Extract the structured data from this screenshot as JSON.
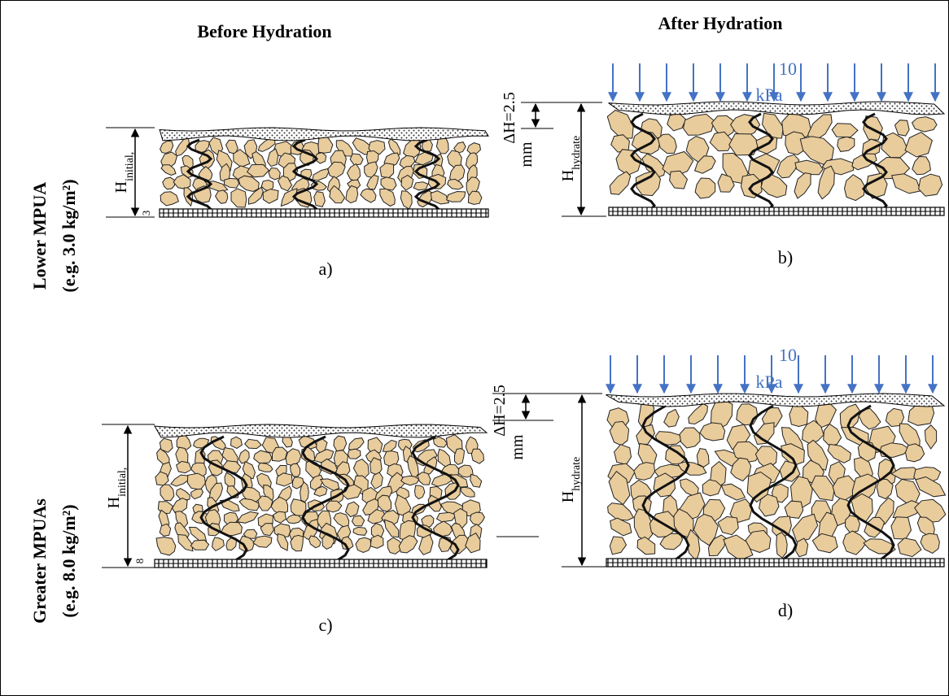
{
  "headers": {
    "before": "Before Hydration",
    "after": "After Hydration"
  },
  "rows": [
    {
      "label": "Lower MPUA",
      "note": "(e.g. 3.0 kg/m²)"
    },
    {
      "label": "Greater MPUAs",
      "note": "(e.g. 8.0 kg/m²)"
    }
  ],
  "panels": [
    {
      "label": "a)",
      "height_symbol": "H",
      "height_subscript": "initial,",
      "marker": "3"
    },
    {
      "label": "b)",
      "delta": "ΔH=2.5",
      "delta_unit": "mm",
      "height_symbol": "H",
      "height_subscript": "hydrate",
      "load_value": "10",
      "load_unit": "kPa"
    },
    {
      "label": "c)",
      "height_symbol": "H",
      "height_subscript": "initial,",
      "marker": "8"
    },
    {
      "label": "d)",
      "delta": "ΔH=2.5",
      "delta_unit": "mm",
      "height_symbol": "H",
      "height_subscript": "hydrate",
      "load_value": "10",
      "load_unit": "kPa"
    }
  ]
}
